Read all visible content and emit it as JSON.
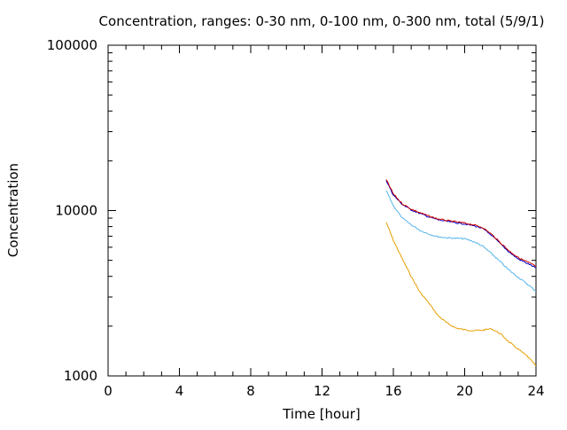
{
  "chart_data": {
    "type": "line",
    "title": "Concentration, ranges: 0-30 nm, 0-100 nm, 0-300 nm, total (5/9/1)",
    "xlabel": "Time [hour]",
    "ylabel": "Concentration",
    "xlim": [
      0,
      24
    ],
    "ylim": [
      1000,
      100000
    ],
    "yscale": "log",
    "grid": false,
    "legend": "none",
    "xticks": [
      {
        "value": 0,
        "label": "0"
      },
      {
        "value": 4,
        "label": "4"
      },
      {
        "value": 8,
        "label": "8"
      },
      {
        "value": 12,
        "label": "12"
      },
      {
        "value": 16,
        "label": "16"
      },
      {
        "value": 20,
        "label": "20"
      },
      {
        "value": 24,
        "label": "24"
      }
    ],
    "yticks": [
      {
        "value": 1000,
        "label": "1000"
      },
      {
        "value": 10000,
        "label": "10000"
      },
      {
        "value": 100000,
        "label": "100000"
      }
    ],
    "series": [
      {
        "color": "#e69f00",
        "x": [
          15.6,
          16.0,
          16.5,
          17.0,
          17.5,
          18.0,
          18.5,
          19.0,
          19.5,
          20.0,
          20.5,
          21.0,
          21.5,
          22.0,
          22.5,
          23.0,
          23.5,
          24.0
        ],
        "y": [
          8500,
          6600,
          5100,
          4000,
          3200,
          2750,
          2320,
          2090,
          1950,
          1900,
          1880,
          1890,
          1930,
          1800,
          1600,
          1450,
          1320,
          1150
        ]
      },
      {
        "color": "#56b4e9",
        "x": [
          15.6,
          16.0,
          16.5,
          17.0,
          17.5,
          18.0,
          18.5,
          19.0,
          19.5,
          20.0,
          20.5,
          21.0,
          21.5,
          22.0,
          22.5,
          23.0,
          23.5,
          24.0
        ],
        "y": [
          13200,
          10700,
          9000,
          8200,
          7600,
          7200,
          6950,
          6850,
          6800,
          6750,
          6500,
          6100,
          5500,
          4900,
          4350,
          3950,
          3600,
          3250
        ]
      },
      {
        "color": "#0000cc",
        "x": [
          15.6,
          16.0,
          16.5,
          17.0,
          17.5,
          18.0,
          18.5,
          19.0,
          19.5,
          20.0,
          20.5,
          21.0,
          21.5,
          22.0,
          22.5,
          23.0,
          23.5,
          24.0
        ],
        "y": [
          15200,
          12400,
          10900,
          10100,
          9600,
          9150,
          8800,
          8600,
          8450,
          8300,
          8100,
          7800,
          7100,
          6300,
          5600,
          5100,
          4800,
          4500
        ]
      },
      {
        "color": "#cc0000",
        "x": [
          15.6,
          16.0,
          16.5,
          17.0,
          17.5,
          18.0,
          18.5,
          19.0,
          19.5,
          20.0,
          20.5,
          21.0,
          21.5,
          22.0,
          22.5,
          23.0,
          23.5,
          24.0
        ],
        "y": [
          15400,
          12600,
          11000,
          10200,
          9700,
          9250,
          8900,
          8700,
          8550,
          8400,
          8200,
          7900,
          7200,
          6400,
          5700,
          5200,
          4900,
          4600
        ]
      }
    ]
  }
}
